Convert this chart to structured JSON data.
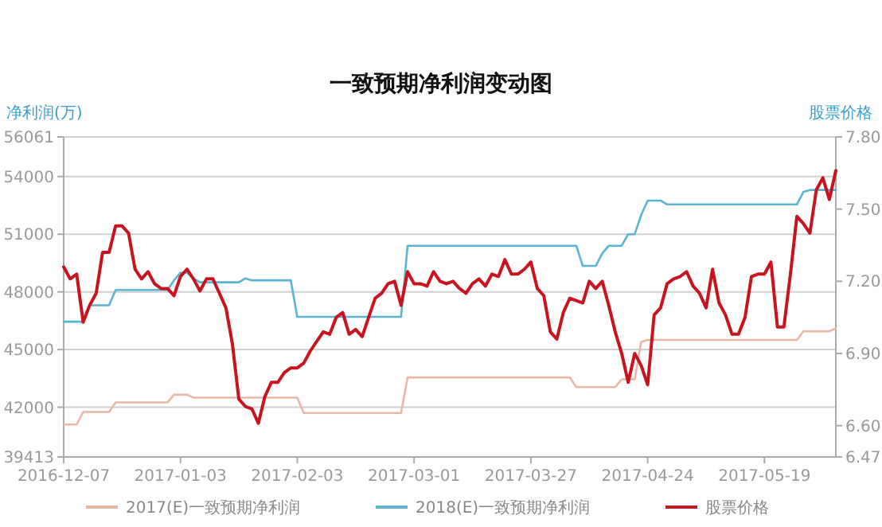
{
  "chart_data": {
    "type": "line",
    "title": "一致预期净利润变动图",
    "ylabel": "净利润(万)",
    "y2label": "股票价格",
    "categories": [
      "2016-12-07",
      null,
      null,
      null,
      null,
      null,
      null,
      null,
      null,
      null,
      null,
      null,
      null,
      null,
      null,
      null,
      null,
      null,
      "2017-01-03",
      null,
      null,
      null,
      null,
      null,
      null,
      null,
      null,
      null,
      null,
      null,
      null,
      null,
      null,
      null,
      null,
      null,
      "2017-02-03",
      null,
      null,
      null,
      null,
      null,
      null,
      null,
      null,
      null,
      null,
      null,
      null,
      null,
      null,
      null,
      null,
      null,
      "2017-03-01",
      null,
      null,
      null,
      null,
      null,
      null,
      null,
      null,
      null,
      null,
      null,
      null,
      null,
      null,
      null,
      null,
      null,
      "2017-03-27",
      null,
      null,
      null,
      null,
      null,
      null,
      null,
      null,
      null,
      null,
      null,
      null,
      null,
      null,
      null,
      null,
      null,
      "2017-04-24",
      null,
      null,
      null,
      null,
      null,
      null,
      null,
      null,
      null,
      null,
      null,
      null,
      null,
      null,
      null,
      null,
      null,
      "2017-05-19",
      null,
      null,
      null,
      null,
      null,
      null,
      null,
      null,
      null,
      null,
      null
    ],
    "series": [
      {
        "name": "2017(E)一致预期净利润",
        "color": "#e8b8a6",
        "axis": "y",
        "values": [
          41100,
          41100,
          41100,
          41750,
          41750,
          41750,
          41750,
          41750,
          42250,
          42250,
          42250,
          42250,
          42250,
          42250,
          42250,
          42250,
          42250,
          42650,
          42650,
          42650,
          42500,
          42500,
          42500,
          42500,
          42500,
          42500,
          42500,
          42500,
          42500,
          42500,
          42500,
          42500,
          42500,
          42500,
          42500,
          42500,
          42500,
          41700,
          41700,
          41700,
          41700,
          41700,
          41700,
          41700,
          41700,
          41700,
          41700,
          41700,
          41700,
          41700,
          41700,
          41700,
          41700,
          43550,
          43550,
          43550,
          43550,
          43550,
          43550,
          43550,
          43550,
          43550,
          43550,
          43550,
          43550,
          43550,
          43550,
          43550,
          43550,
          43550,
          43550,
          43550,
          43550,
          43550,
          43550,
          43550,
          43550,
          43550,
          43550,
          43050,
          43050,
          43050,
          43050,
          43050,
          43050,
          43050,
          43450,
          43450,
          43450,
          45400,
          45500,
          45500,
          45500,
          45500,
          45500,
          45500,
          45500,
          45500,
          45500,
          45500,
          45500,
          45500,
          45500,
          45500,
          45500,
          45500,
          45500,
          45500,
          45500,
          45500,
          45500,
          45500,
          45500,
          45500,
          45950,
          45950,
          45950,
          45950,
          45950,
          46100
        ]
      },
      {
        "name": "2018(E)一致预期净利润",
        "color": "#5ab4d2",
        "axis": "y",
        "values": [
          46450,
          46450,
          46450,
          46450,
          47300,
          47300,
          47300,
          47300,
          48100,
          48100,
          48100,
          48100,
          48100,
          48100,
          48100,
          48100,
          48100,
          48600,
          49000,
          49000,
          48700,
          48500,
          48500,
          48500,
          48500,
          48500,
          48500,
          48500,
          48700,
          48600,
          48600,
          48600,
          48600,
          48600,
          48600,
          48600,
          46700,
          46700,
          46700,
          46700,
          46700,
          46700,
          46700,
          46700,
          46700,
          46700,
          46700,
          46700,
          46700,
          46700,
          46700,
          46700,
          46700,
          50400,
          50400,
          50400,
          50400,
          50400,
          50400,
          50400,
          50400,
          50400,
          50400,
          50400,
          50400,
          50400,
          50400,
          50400,
          50400,
          50400,
          50400,
          50400,
          50400,
          50400,
          50400,
          50400,
          50400,
          50400,
          50400,
          50400,
          49350,
          49350,
          49350,
          50000,
          50400,
          50400,
          50400,
          51000,
          51000,
          52000,
          52750,
          52750,
          52750,
          52550,
          52550,
          52550,
          52550,
          52550,
          52550,
          52550,
          52550,
          52550,
          52550,
          52550,
          52550,
          52550,
          52550,
          52550,
          52550,
          52550,
          52550,
          52550,
          52550,
          52550,
          53200,
          53300,
          53300,
          53300,
          53300,
          53300
        ]
      },
      {
        "name": "股票价格",
        "color": "#c8141e",
        "axis": "y2",
        "values": [
          7.26,
          7.21,
          7.23,
          7.03,
          7.1,
          7.15,
          7.32,
          7.32,
          7.43,
          7.43,
          7.4,
          7.25,
          7.21,
          7.24,
          7.19,
          7.17,
          7.17,
          7.14,
          7.22,
          7.25,
          7.21,
          7.16,
          7.21,
          7.21,
          7.15,
          7.09,
          6.94,
          6.71,
          6.68,
          6.67,
          6.61,
          6.72,
          6.78,
          6.78,
          6.82,
          6.84,
          6.84,
          6.86,
          6.91,
          6.95,
          6.99,
          6.98,
          7.05,
          7.07,
          6.98,
          7.0,
          6.97,
          7.05,
          7.13,
          7.15,
          7.19,
          7.2,
          7.1,
          7.24,
          7.19,
          7.19,
          7.18,
          7.24,
          7.2,
          7.19,
          7.2,
          7.17,
          7.15,
          7.19,
          7.21,
          7.18,
          7.23,
          7.22,
          7.29,
          7.23,
          7.23,
          7.25,
          7.28,
          7.17,
          7.14,
          6.99,
          6.96,
          7.07,
          7.13,
          7.12,
          7.11,
          7.2,
          7.17,
          7.2,
          7.1,
          6.99,
          6.9,
          6.78,
          6.9,
          6.85,
          6.77,
          7.06,
          7.09,
          7.19,
          7.21,
          7.22,
          7.24,
          7.18,
          7.15,
          7.09,
          7.25,
          7.11,
          7.06,
          6.98,
          6.98,
          7.05,
          7.22,
          7.23,
          7.23,
          7.28,
          7.01,
          7.01,
          7.23,
          7.47,
          7.44,
          7.4,
          7.58,
          7.63,
          7.54,
          7.66
        ]
      }
    ],
    "ylim": [
      39413,
      56061
    ],
    "yticks": [
      39413,
      42000,
      45000,
      48000,
      51000,
      54000,
      56061
    ],
    "y2lim": [
      6.47,
      7.8
    ],
    "y2ticks": [
      {
        "value": 6.47,
        "label": "6.47"
      },
      {
        "value": 6.6,
        "label": "6.60"
      },
      {
        "value": 6.9,
        "label": "6.90"
      },
      {
        "value": 7.2,
        "label": "7.20"
      },
      {
        "value": 7.5,
        "label": "7.50"
      },
      {
        "value": 7.8,
        "label": "7.80"
      }
    ],
    "grid": "y",
    "legend": "bottom"
  }
}
